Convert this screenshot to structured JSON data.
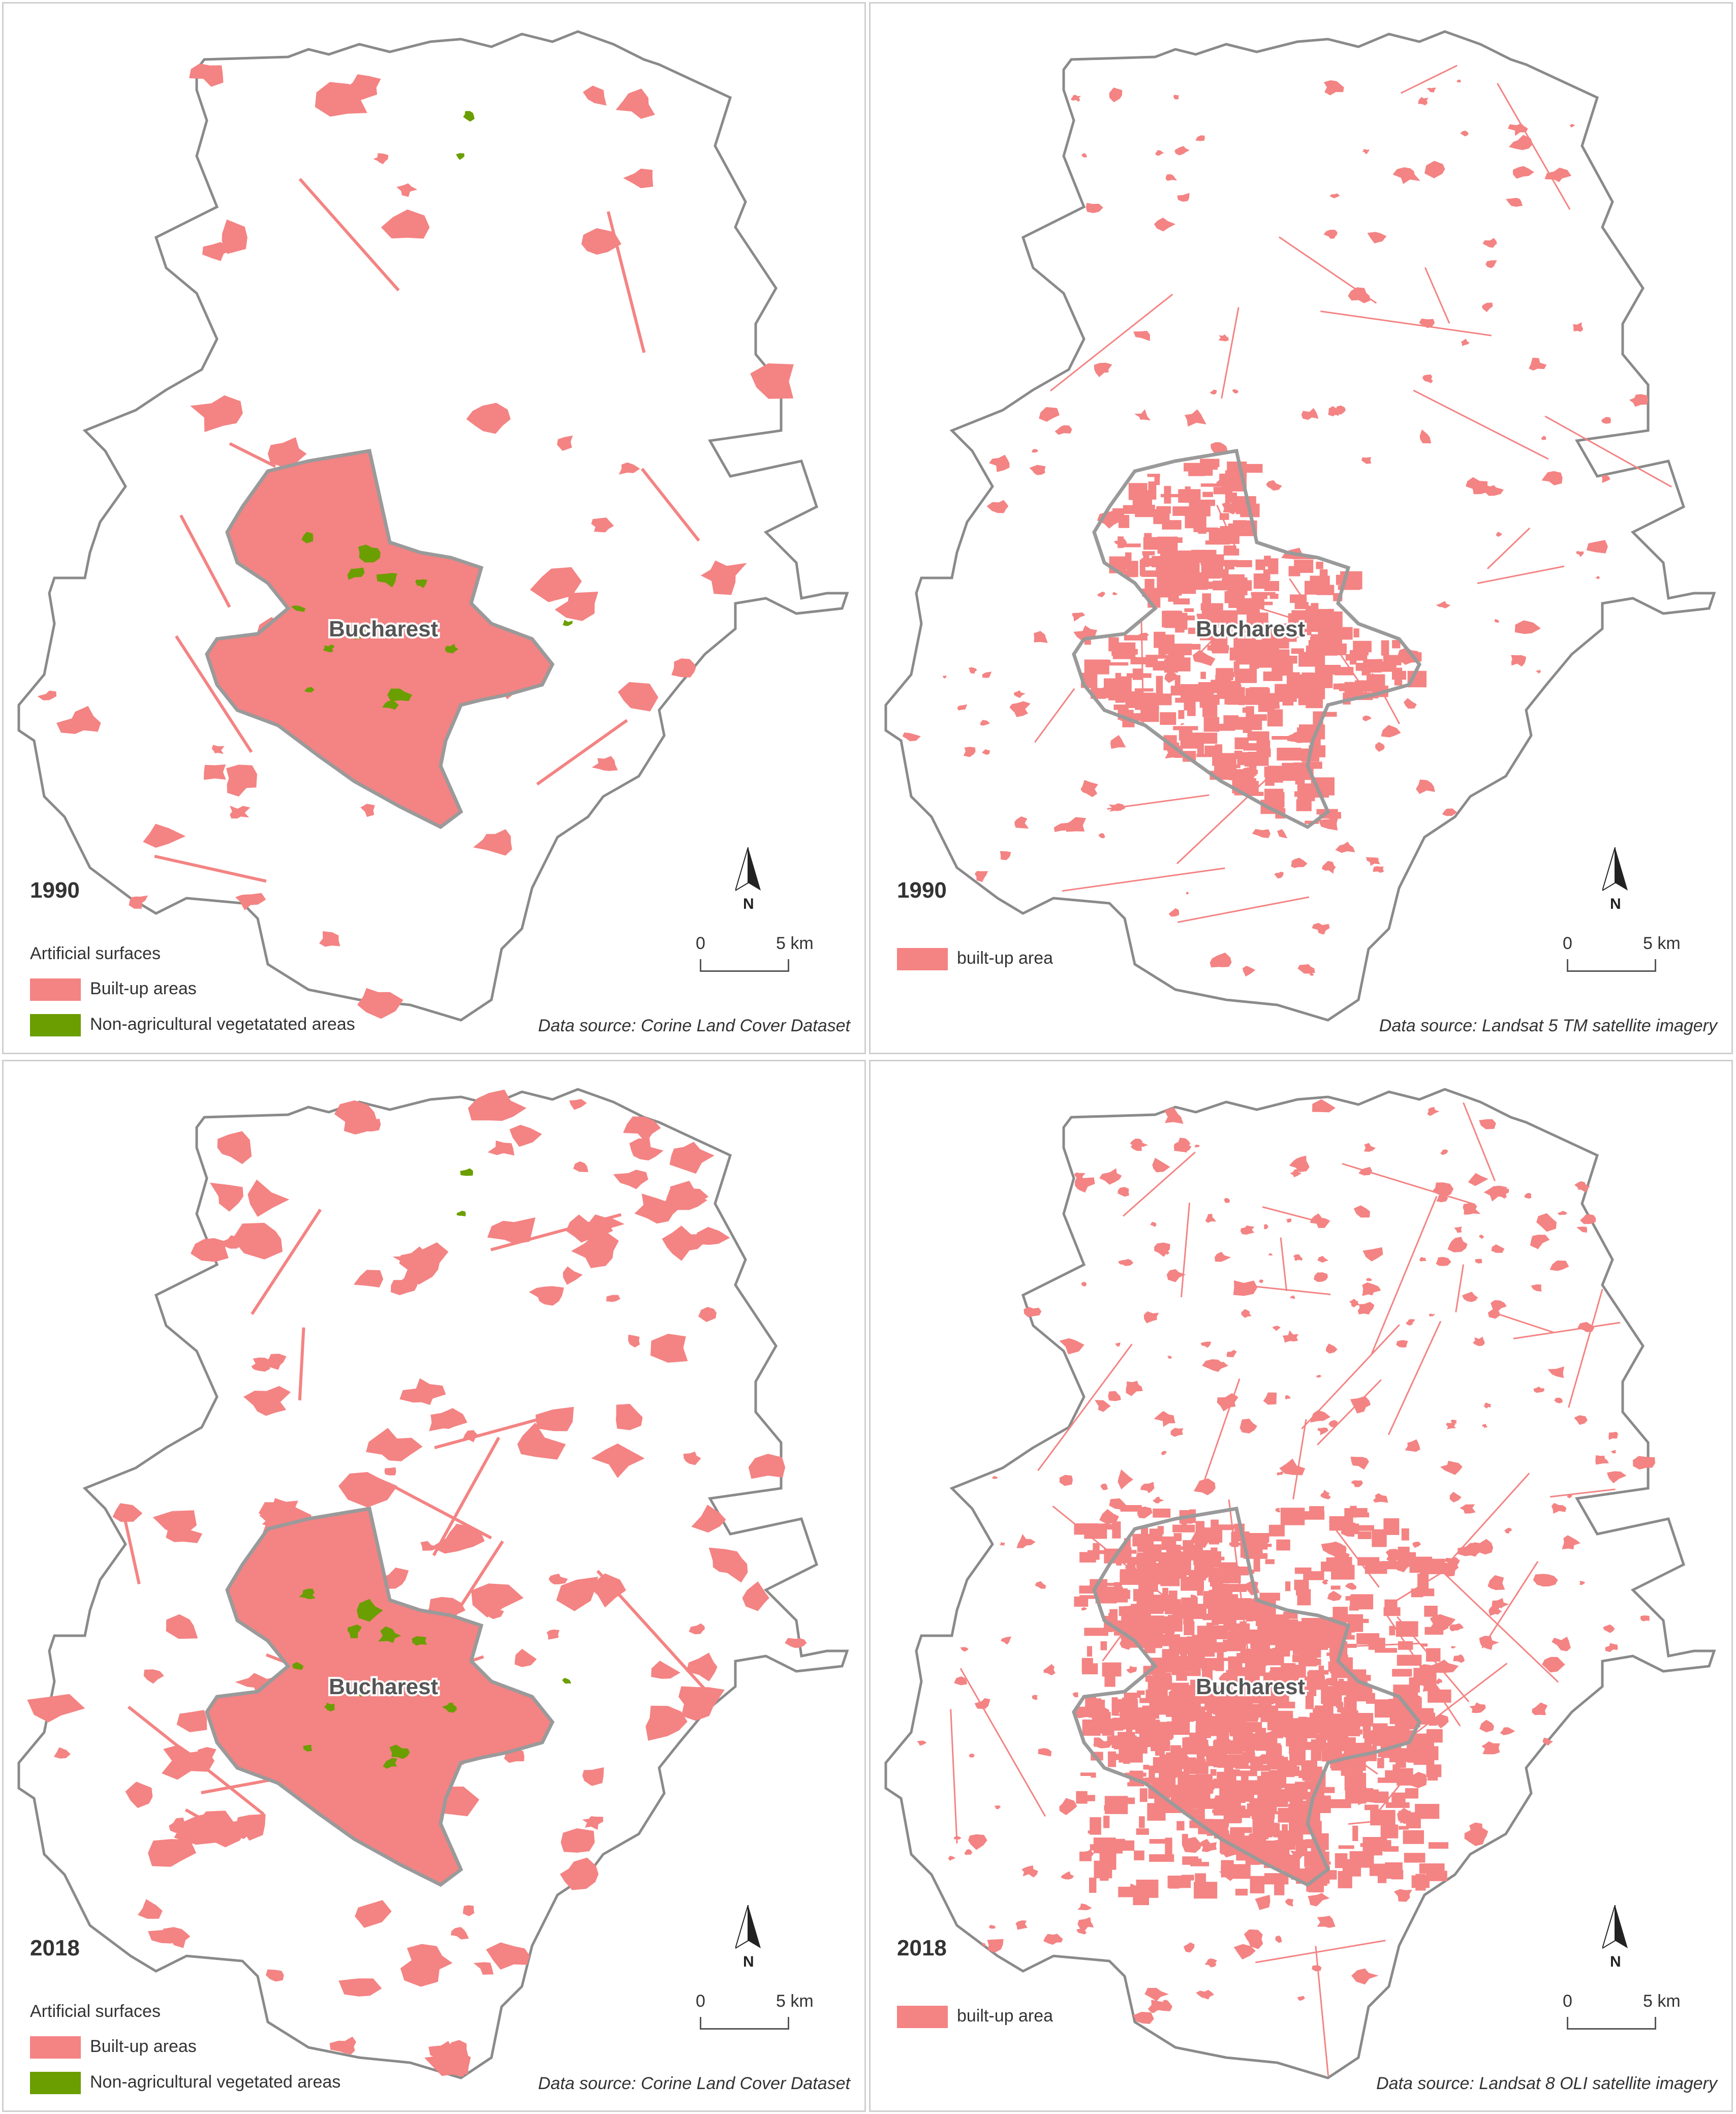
{
  "colors": {
    "built_up": "#f48383",
    "vegetated": "#6b9e00",
    "boundary": "#8a8a8a",
    "city_boundary": "#9a9a9a",
    "panel_border": "#cfcfcf"
  },
  "panels": [
    {
      "year": "1990",
      "city": "Bucharest",
      "legend_title": "Artificial surfaces",
      "legend_items": [
        {
          "label": "Built-up areas",
          "color": "#f48383"
        },
        {
          "label": "Non-agricultural vegetatated areas",
          "color": "#6b9e00"
        }
      ],
      "north": "N",
      "scale": {
        "start": "0",
        "end": "5 km"
      },
      "source": "Data source: Corine Land Cover Dataset"
    },
    {
      "year": "1990",
      "city": "Bucharest",
      "legend_title": "",
      "legend_items": [
        {
          "label": "built-up area",
          "color": "#f48383"
        }
      ],
      "north": "N",
      "scale": {
        "start": "0",
        "end": "5 km"
      },
      "source": "Data source: Landsat 5 TM satellite imagery"
    },
    {
      "year": "2018",
      "city": "Bucharest",
      "legend_title": "Artificial surfaces",
      "legend_items": [
        {
          "label": "Built-up areas",
          "color": "#f48383"
        },
        {
          "label": "Non-agricultural vegetated areas",
          "color": "#6b9e00"
        }
      ],
      "north": "N",
      "scale": {
        "start": "0",
        "end": "5 km"
      },
      "source": "Data source: Corine Land Cover Dataset"
    },
    {
      "year": "2018",
      "city": "Bucharest",
      "legend_title": "",
      "legend_items": [
        {
          "label": "built-up area",
          "color": "#f48383"
        }
      ],
      "north": "N",
      "scale": {
        "start": "0",
        "end": "5 km"
      },
      "source": "Data source: Landsat 8 OLI satellite imagery"
    }
  ]
}
